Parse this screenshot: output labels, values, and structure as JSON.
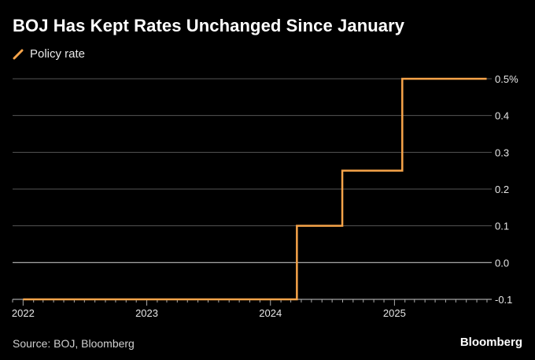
{
  "chart_data": {
    "type": "line",
    "title": "BOJ Has Kept Rates Unchanged Since January",
    "legend": "top-left",
    "source": "Source: BOJ, Bloomberg",
    "brand": "Bloomberg",
    "colors": {
      "series": "#f7a44a",
      "grid": "#555555",
      "zero_line": "#bbbbbb",
      "background": "#000000"
    },
    "x_range": [
      "2021-12-01",
      "2025-10-15"
    ],
    "x_tick_labels": [
      "2022",
      "2023",
      "2024",
      "2025"
    ],
    "x_tick_dates": [
      "2022-01-01",
      "2023-01-01",
      "2024-01-01",
      "2025-01-01"
    ],
    "y_range": [
      -0.1,
      0.5
    ],
    "y_ticks": [
      {
        "value": 0.5,
        "label": "0.5%"
      },
      {
        "value": 0.4,
        "label": "0.4"
      },
      {
        "value": 0.3,
        "label": "0.3"
      },
      {
        "value": 0.2,
        "label": "0.2"
      },
      {
        "value": 0.1,
        "label": "0.1"
      },
      {
        "value": 0.0,
        "label": "0.0"
      },
      {
        "value": -0.1,
        "label": "-0.1"
      }
    ],
    "grid": true,
    "series": [
      {
        "name": "Policy rate",
        "points": [
          {
            "date": "2022-01-01",
            "value": -0.1
          },
          {
            "date": "2024-03-19",
            "value": 0.1
          },
          {
            "date": "2024-07-31",
            "value": 0.25
          },
          {
            "date": "2025-01-24",
            "value": 0.5
          },
          {
            "date": "2025-09-30",
            "value": 0.5
          }
        ]
      }
    ]
  }
}
